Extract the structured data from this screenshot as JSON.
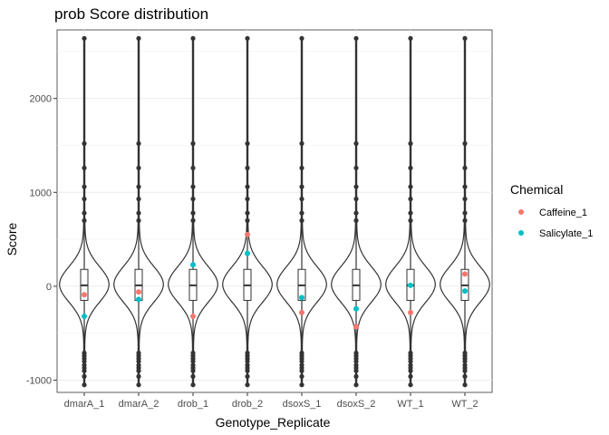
{
  "chart_data": {
    "type": "violin",
    "title": "prob Score distribution",
    "xlabel": "Genotype_Replicate",
    "ylabel": "Score",
    "categories": [
      "dmarA_1",
      "dmarA_2",
      "drob_1",
      "drob_2",
      "dsoxS_1",
      "dsoxS_2",
      "WT_1",
      "WT_2"
    ],
    "ylim": [
      -1130,
      2730
    ],
    "yticks": [
      -1000,
      0,
      1000,
      2000
    ],
    "grid": true,
    "legend_position": "right",
    "legend_title": "Chemical",
    "box": {
      "q1": -150,
      "median": 10,
      "q3": 180
    },
    "outliers": [
      -1050,
      -960,
      -900,
      -870,
      -840,
      -800,
      -770,
      -740,
      -710,
      700,
      780,
      930,
      1060,
      1260,
      1520,
      2640
    ],
    "series": [
      {
        "name": "Caffeine_1",
        "color": "#F8766D",
        "values": [
          -90,
          -60,
          -320,
          550,
          -280,
          -430,
          -280,
          130
        ]
      },
      {
        "name": "Salicylate_1",
        "color": "#00BFC4",
        "values": [
          -320,
          -140,
          230,
          350,
          -120,
          -240,
          10,
          -50
        ]
      }
    ]
  }
}
